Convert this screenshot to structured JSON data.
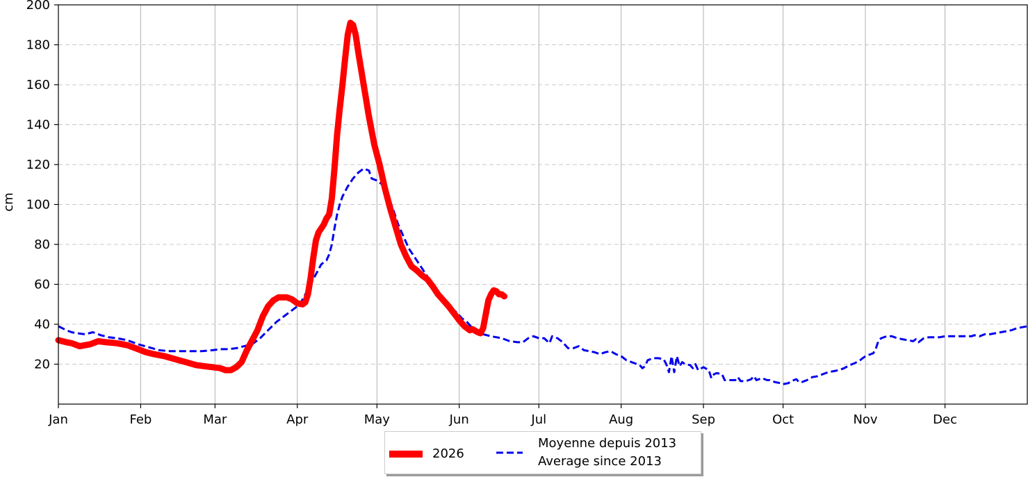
{
  "chart_data": {
    "type": "line",
    "ylabel": "cm",
    "xlim": [
      0,
      365
    ],
    "ylim": [
      0,
      200
    ],
    "grid": true,
    "legend_placement": "bottom-center",
    "x_ticks": [
      {
        "label": "Jan",
        "day": 0
      },
      {
        "label": "Feb",
        "day": 31
      },
      {
        "label": "Mar",
        "day": 59
      },
      {
        "label": "Apr",
        "day": 90
      },
      {
        "label": "May",
        "day": 120
      },
      {
        "label": "Jun",
        "day": 151
      },
      {
        "label": "Jul",
        "day": 181
      },
      {
        "label": "Aug",
        "day": 212
      },
      {
        "label": "Sep",
        "day": 243
      },
      {
        "label": "Oct",
        "day": 273
      },
      {
        "label": "Nov",
        "day": 304
      },
      {
        "label": "Dec",
        "day": 334
      }
    ],
    "y_ticks": [
      20,
      40,
      60,
      80,
      100,
      120,
      140,
      160,
      180,
      200
    ],
    "series": [
      {
        "name": "2026",
        "color": "#ff0000",
        "style": "solid",
        "points": [
          [
            0,
            32
          ],
          [
            3,
            31
          ],
          [
            5,
            30.5
          ],
          [
            8,
            29
          ],
          [
            10,
            29.5
          ],
          [
            12,
            30
          ],
          [
            15,
            31.5
          ],
          [
            18,
            31
          ],
          [
            22,
            30.5
          ],
          [
            26,
            29.5
          ],
          [
            30,
            27.5
          ],
          [
            33,
            26
          ],
          [
            36,
            25
          ],
          [
            40,
            24
          ],
          [
            44,
            22.5
          ],
          [
            48,
            21
          ],
          [
            52,
            19.5
          ],
          [
            55,
            19
          ],
          [
            58,
            18.5
          ],
          [
            61,
            18
          ],
          [
            63,
            17
          ],
          [
            65,
            17
          ],
          [
            67,
            18.5
          ],
          [
            69,
            21
          ],
          [
            71,
            27
          ],
          [
            73,
            32
          ],
          [
            75,
            37
          ],
          [
            77,
            44
          ],
          [
            79,
            49
          ],
          [
            81,
            52
          ],
          [
            83,
            53.5
          ],
          [
            86,
            53.5
          ],
          [
            88,
            52.5
          ],
          [
            90,
            50.5
          ],
          [
            92,
            50
          ],
          [
            93,
            51
          ],
          [
            94,
            55
          ],
          [
            95,
            63
          ],
          [
            96,
            73
          ],
          [
            97,
            82
          ],
          [
            98,
            86
          ],
          [
            100,
            90
          ],
          [
            101,
            93
          ],
          [
            102,
            95
          ],
          [
            103,
            103
          ],
          [
            104,
            118
          ],
          [
            105,
            135
          ],
          [
            106,
            148
          ],
          [
            107,
            160
          ],
          [
            108,
            173
          ],
          [
            109,
            185
          ],
          [
            110,
            191
          ],
          [
            111,
            190
          ],
          [
            112,
            185
          ],
          [
            113,
            176
          ],
          [
            115,
            160
          ],
          [
            117,
            144
          ],
          [
            119,
            130
          ],
          [
            121,
            120
          ],
          [
            123,
            108
          ],
          [
            125,
            98
          ],
          [
            127,
            89
          ],
          [
            129,
            80
          ],
          [
            131,
            74
          ],
          [
            133,
            69
          ],
          [
            135,
            67
          ],
          [
            137,
            64.5
          ],
          [
            139,
            62.5
          ],
          [
            141,
            59
          ],
          [
            143,
            55
          ],
          [
            145,
            52
          ],
          [
            147,
            49
          ],
          [
            149,
            45.5
          ],
          [
            151,
            42
          ],
          [
            153,
            39
          ],
          [
            155,
            37
          ],
          [
            156,
            37.5
          ],
          [
            158,
            36
          ],
          [
            159,
            35.5
          ],
          [
            160,
            38
          ],
          [
            161,
            45
          ],
          [
            162,
            52
          ],
          [
            163,
            55
          ],
          [
            164,
            57
          ],
          [
            165,
            56.5
          ],
          [
            166,
            55
          ],
          [
            167,
            55
          ],
          [
            168,
            54
          ]
        ]
      },
      {
        "name": "Moyenne depuis 2013\nAverage since 2013",
        "color": "#0000ee",
        "style": "dashed",
        "points": [
          [
            0,
            39
          ],
          [
            3,
            37
          ],
          [
            5,
            36
          ],
          [
            7,
            35.5
          ],
          [
            10,
            35
          ],
          [
            13,
            36
          ],
          [
            16,
            34.5
          ],
          [
            19,
            33.5
          ],
          [
            22,
            33
          ],
          [
            26,
            32
          ],
          [
            30,
            30
          ],
          [
            34,
            28.5
          ],
          [
            38,
            27
          ],
          [
            42,
            26.5
          ],
          [
            46,
            26.5
          ],
          [
            50,
            26.5
          ],
          [
            54,
            26.5
          ],
          [
            58,
            27
          ],
          [
            61,
            27.5
          ],
          [
            64,
            27.5
          ],
          [
            67,
            28
          ],
          [
            70,
            29
          ],
          [
            73,
            30
          ],
          [
            76,
            33
          ],
          [
            79,
            37
          ],
          [
            82,
            41
          ],
          [
            85,
            44
          ],
          [
            88,
            47
          ],
          [
            91,
            50
          ],
          [
            93,
            55
          ],
          [
            95,
            60
          ],
          [
            97,
            65
          ],
          [
            99,
            70
          ],
          [
            100,
            71
          ],
          [
            101,
            72
          ],
          [
            102,
            75
          ],
          [
            103,
            80
          ],
          [
            104,
            88
          ],
          [
            105,
            95
          ],
          [
            106,
            100
          ],
          [
            107,
            104
          ],
          [
            109,
            109
          ],
          [
            111,
            113
          ],
          [
            113,
            116
          ],
          [
            115,
            118
          ],
          [
            117,
            117
          ],
          [
            118,
            113
          ],
          [
            120,
            112
          ],
          [
            122,
            110
          ],
          [
            124,
            105
          ],
          [
            126,
            98
          ],
          [
            128,
            90
          ],
          [
            130,
            84
          ],
          [
            132,
            78
          ],
          [
            134,
            74
          ],
          [
            136,
            70
          ],
          [
            138,
            66
          ],
          [
            140,
            62
          ],
          [
            142,
            57
          ],
          [
            144,
            54
          ],
          [
            146,
            51
          ],
          [
            148,
            48
          ],
          [
            150,
            46
          ],
          [
            152,
            43
          ],
          [
            154,
            41
          ],
          [
            156,
            38
          ],
          [
            158,
            36
          ],
          [
            160,
            35
          ],
          [
            163,
            34
          ],
          [
            165,
            33.5
          ],
          [
            167,
            33
          ],
          [
            170,
            31.5
          ],
          [
            173,
            31
          ],
          [
            175,
            31
          ],
          [
            177,
            33
          ],
          [
            179,
            34
          ],
          [
            181,
            33
          ],
          [
            183,
            33
          ],
          [
            185,
            30.5
          ],
          [
            186,
            34
          ],
          [
            188,
            33
          ],
          [
            190,
            31
          ],
          [
            192,
            28
          ],
          [
            194,
            28
          ],
          [
            196,
            29
          ],
          [
            198,
            27
          ],
          [
            200,
            26.5
          ],
          [
            202,
            26
          ],
          [
            204,
            25
          ],
          [
            206,
            26
          ],
          [
            208,
            26.5
          ],
          [
            210,
            25
          ],
          [
            212,
            24
          ],
          [
            214,
            22
          ],
          [
            216,
            21
          ],
          [
            218,
            20
          ],
          [
            219,
            19.5
          ],
          [
            220,
            18
          ],
          [
            221,
            19
          ],
          [
            222,
            22
          ],
          [
            224,
            23
          ],
          [
            226,
            23
          ],
          [
            228,
            22.5
          ],
          [
            229,
            20
          ],
          [
            230,
            16
          ],
          [
            231,
            24
          ],
          [
            232,
            16
          ],
          [
            233,
            24
          ],
          [
            234,
            19
          ],
          [
            235,
            21
          ],
          [
            236,
            20
          ],
          [
            238,
            19.5
          ],
          [
            239,
            18
          ],
          [
            240,
            20
          ],
          [
            241,
            17
          ],
          [
            243,
            18.5
          ],
          [
            245,
            17
          ],
          [
            246,
            13
          ],
          [
            247,
            15
          ],
          [
            248,
            15.5
          ],
          [
            250,
            15
          ],
          [
            251,
            12
          ],
          [
            253,
            12
          ],
          [
            255,
            12
          ],
          [
            256,
            13.5
          ],
          [
            257,
            11.5
          ],
          [
            259,
            11.5
          ],
          [
            261,
            12.5
          ],
          [
            262,
            14
          ],
          [
            263,
            12
          ],
          [
            265,
            13
          ],
          [
            267,
            12
          ],
          [
            268,
            12
          ],
          [
            270,
            11
          ],
          [
            272,
            10.5
          ],
          [
            273,
            10
          ],
          [
            275,
            10.5
          ],
          [
            276,
            11.5
          ],
          [
            278,
            12.5
          ],
          [
            279,
            11
          ],
          [
            280,
            11
          ],
          [
            282,
            12
          ],
          [
            284,
            13.5
          ],
          [
            286,
            14
          ],
          [
            288,
            15
          ],
          [
            290,
            16
          ],
          [
            292,
            16.5
          ],
          [
            294,
            17
          ],
          [
            296,
            18
          ],
          [
            298,
            19.5
          ],
          [
            300,
            20.5
          ],
          [
            302,
            22
          ],
          [
            304,
            24
          ],
          [
            306,
            25
          ],
          [
            307,
            25.5
          ],
          [
            308,
            28
          ],
          [
            309,
            32
          ],
          [
            310,
            33
          ],
          [
            312,
            34
          ],
          [
            314,
            34
          ],
          [
            316,
            33
          ],
          [
            318,
            32.5
          ],
          [
            320,
            32
          ],
          [
            322,
            31.5
          ],
          [
            323,
            32.5
          ],
          [
            324,
            31
          ],
          [
            326,
            33
          ],
          [
            328,
            33.5
          ],
          [
            330,
            33.5
          ],
          [
            332,
            33.5
          ],
          [
            334,
            34
          ],
          [
            336,
            34
          ],
          [
            338,
            34
          ],
          [
            340,
            34
          ],
          [
            342,
            34
          ],
          [
            344,
            34
          ],
          [
            345,
            34.5
          ],
          [
            347,
            34
          ],
          [
            349,
            35
          ],
          [
            351,
            35
          ],
          [
            353,
            35.5
          ],
          [
            355,
            36
          ],
          [
            357,
            36.5
          ],
          [
            359,
            37
          ],
          [
            361,
            38
          ],
          [
            363,
            38.5
          ],
          [
            365,
            39
          ]
        ]
      }
    ]
  },
  "legend": {
    "items": [
      {
        "label": "2026",
        "color": "#ff0000"
      },
      {
        "label": "Moyenne depuis 2013\nAverage since 2013",
        "color": "#0000ee"
      }
    ]
  }
}
